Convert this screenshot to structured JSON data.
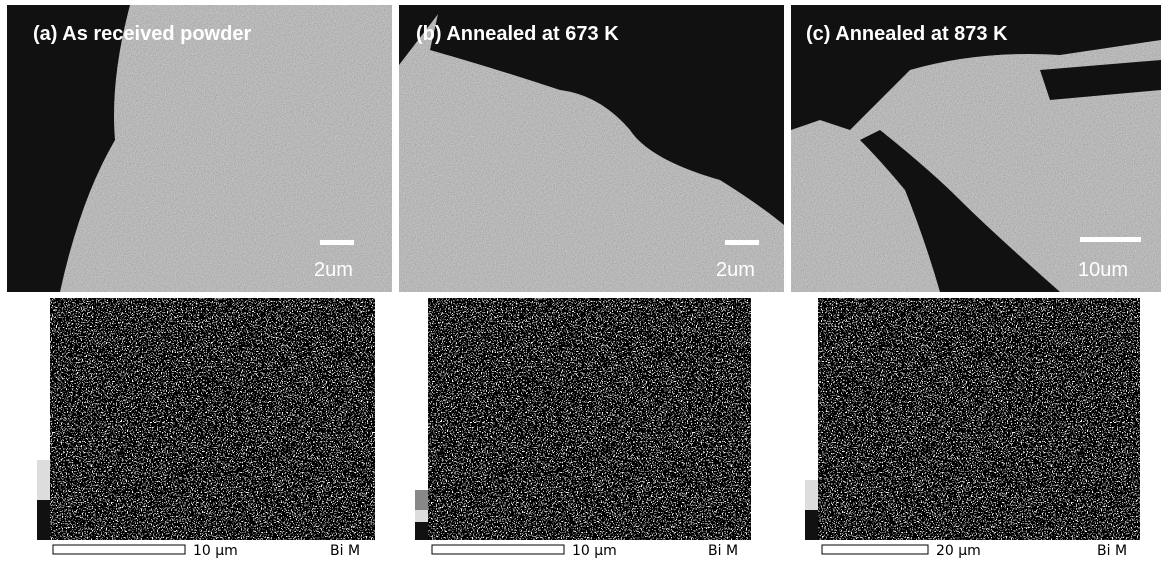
{
  "panels": [
    {
      "label": "(a) As received powder",
      "scale_label": "2um",
      "eds_scale_label": "10 µm",
      "eds_element": "Bi M"
    },
    {
      "label": "(b) Annealed at 673 K",
      "scale_label": "2um",
      "eds_scale_label": "10 µm",
      "eds_element": "Bi M"
    },
    {
      "label": "(c) Annealed at 873 K",
      "scale_label": "10um",
      "eds_scale_label": "20 µm",
      "eds_element": "Bi M"
    }
  ]
}
